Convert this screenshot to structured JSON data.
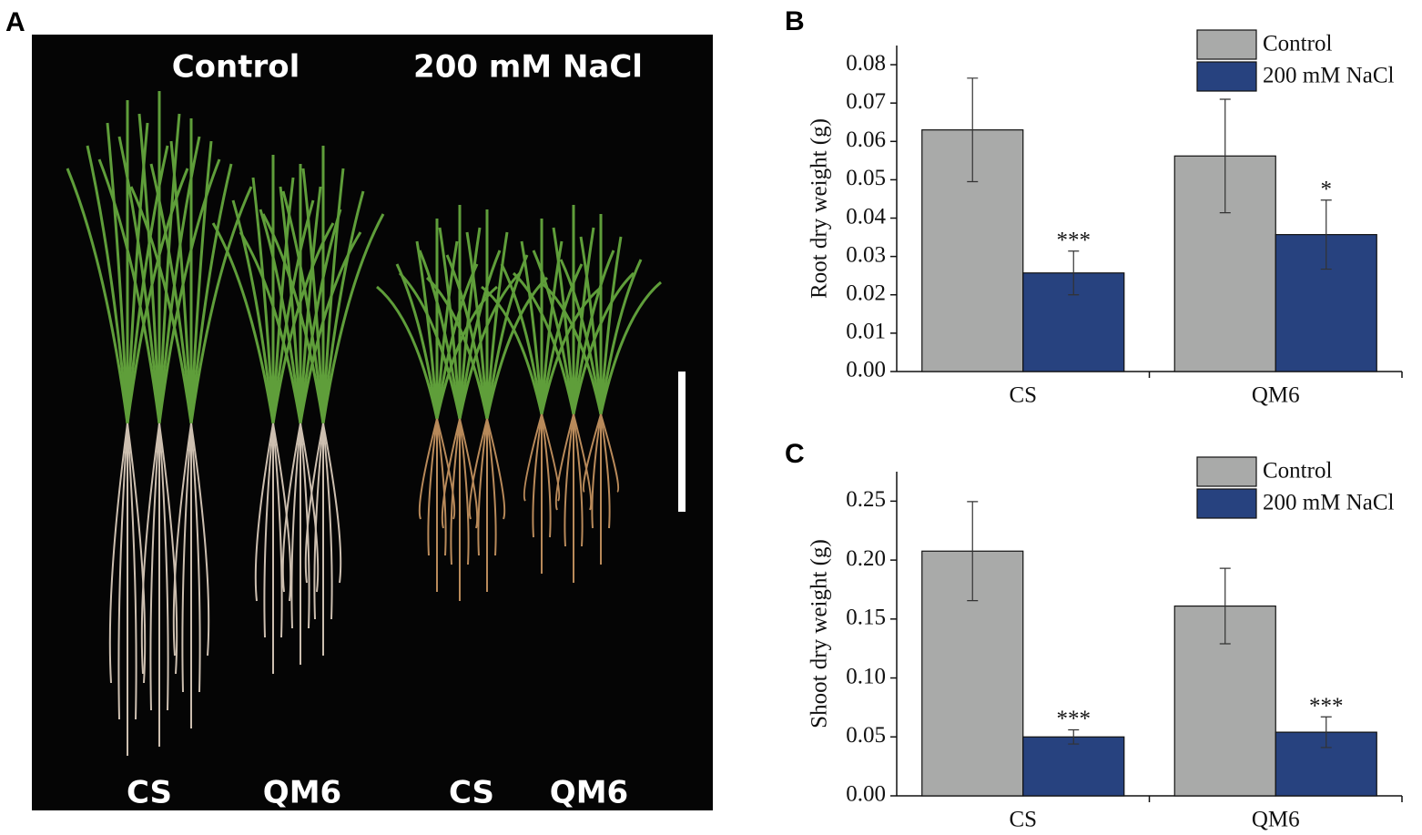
{
  "photo": {
    "label": "A",
    "titles": [
      "Control",
      "200 mM NaCl"
    ],
    "lanes": [
      "CS",
      "QM6",
      "CS",
      "QM6"
    ]
  },
  "chart_data": [
    {
      "type": "bar",
      "panel_label": "B",
      "y_label": "Root dry weight (g)",
      "categories": [
        "CS",
        "QM6"
      ],
      "series": [
        {
          "name": "Control",
          "color": "#a9aaa9",
          "values": [
            0.063,
            0.0562
          ],
          "errors": [
            0.0135,
            0.0148
          ],
          "significance": [
            null,
            null
          ]
        },
        {
          "name": "200 mM NaCl",
          "color": "#27427f",
          "values": [
            0.0257,
            0.0357
          ],
          "errors": [
            0.0057,
            0.009
          ],
          "significance": [
            "***",
            "*"
          ]
        }
      ],
      "ylim": [
        0,
        0.085
      ],
      "yticks": [
        {
          "value": 0,
          "label": "0.00"
        },
        {
          "value": 0.01,
          "label": "0.01"
        },
        {
          "value": 0.02,
          "label": "0.02"
        },
        {
          "value": 0.03,
          "label": "0.03"
        },
        {
          "value": 0.04,
          "label": "0.04"
        },
        {
          "value": 0.05,
          "label": "0.05"
        },
        {
          "value": 0.06,
          "label": "0.06"
        },
        {
          "value": 0.07,
          "label": "0.07"
        },
        {
          "value": 0.08,
          "label": "0.08"
        }
      ],
      "legend": "upper right"
    },
    {
      "type": "bar",
      "panel_label": "C",
      "y_label": "Shoot dry weight (g)",
      "categories": [
        "CS",
        "QM6"
      ],
      "series": [
        {
          "name": "Control",
          "color": "#a9aaa9",
          "values": [
            0.2076,
            0.161
          ],
          "errors": [
            0.042,
            0.032
          ],
          "significance": [
            null,
            null
          ]
        },
        {
          "name": "200 mM NaCl",
          "color": "#27427f",
          "values": [
            0.05,
            0.054
          ],
          "errors": [
            0.006,
            0.013
          ],
          "significance": [
            "***",
            "***"
          ]
        }
      ],
      "ylim": [
        0,
        0.275
      ],
      "yticks": [
        {
          "value": 0,
          "label": "0.00"
        },
        {
          "value": 0.05,
          "label": "0.05"
        },
        {
          "value": 0.1,
          "label": "0.10"
        },
        {
          "value": 0.15,
          "label": "0.15"
        },
        {
          "value": 0.2,
          "label": "0.20"
        },
        {
          "value": 0.25,
          "label": "0.25"
        }
      ],
      "legend": "upper right"
    }
  ]
}
